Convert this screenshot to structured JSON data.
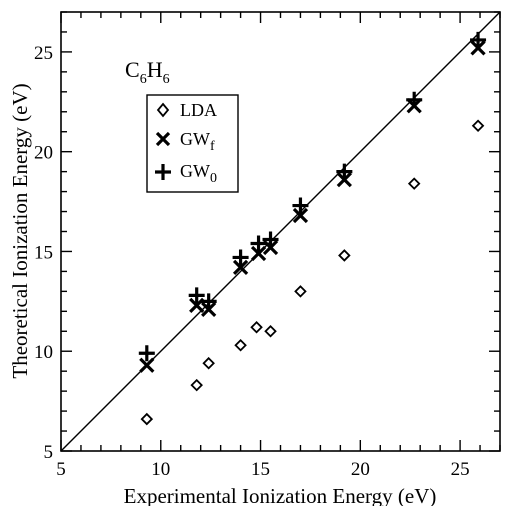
{
  "chart_data": {
    "type": "scatter",
    "xlabel": "Experimental Ionization Energy (eV)",
    "ylabel": "Theoretical Ionization Energy (eV)",
    "xlim": [
      5,
      27
    ],
    "ylim": [
      5,
      27
    ],
    "xticks": [
      "5",
      "10",
      "15",
      "20",
      "25"
    ],
    "yticks": [
      "5",
      "10",
      "15",
      "20",
      "25"
    ],
    "grid": false,
    "legend_position": "upper-left",
    "annotation": {
      "base": "C",
      "sub1": "6",
      "mid": "H",
      "sub2": "6"
    },
    "reference_line": {
      "from": [
        5,
        5
      ],
      "to": [
        27,
        27
      ]
    },
    "series": [
      {
        "name_base": "LDA",
        "name_sub": "",
        "marker": "diamond",
        "points": [
          [
            9.3,
            6.6
          ],
          [
            11.8,
            8.3
          ],
          [
            12.4,
            9.4
          ],
          [
            14.0,
            10.3
          ],
          [
            14.8,
            11.2
          ],
          [
            15.5,
            11.0
          ],
          [
            17.0,
            13.0
          ],
          [
            19.2,
            14.8
          ],
          [
            22.7,
            18.4
          ],
          [
            25.9,
            21.3
          ]
        ]
      },
      {
        "name_base": "GW",
        "name_sub": "f",
        "marker": "x",
        "points": [
          [
            9.3,
            9.3
          ],
          [
            11.8,
            12.3
          ],
          [
            12.4,
            12.1
          ],
          [
            14.0,
            14.2
          ],
          [
            14.9,
            14.9
          ],
          [
            15.5,
            15.2
          ],
          [
            17.0,
            16.8
          ],
          [
            19.2,
            18.6
          ],
          [
            22.7,
            22.3
          ],
          [
            25.9,
            25.2
          ]
        ]
      },
      {
        "name_base": "GW",
        "name_sub": "0",
        "marker": "plus",
        "points": [
          [
            9.3,
            9.9
          ],
          [
            11.8,
            12.8
          ],
          [
            12.4,
            12.5
          ],
          [
            14.0,
            14.7
          ],
          [
            14.9,
            15.4
          ],
          [
            15.5,
            15.6
          ],
          [
            17.0,
            17.3
          ],
          [
            19.2,
            19.0
          ],
          [
            22.7,
            22.6
          ],
          [
            25.9,
            25.6
          ]
        ]
      }
    ]
  }
}
